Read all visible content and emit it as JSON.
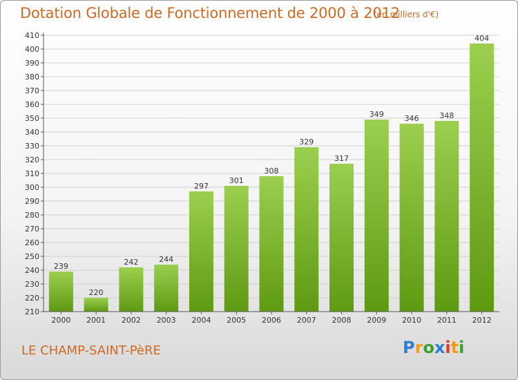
{
  "title": "Dotation Globale de Fonctionnement de 2000 à 2012",
  "unit_note": "(en milliers d'€)",
  "commune": "LE CHAMP-SAINT-PèRE",
  "logo": {
    "letters": [
      "P",
      "r",
      "o",
      "x",
      "i",
      "t",
      "i"
    ],
    "colors": [
      "#2a7fd4",
      "#f39c12",
      "#3aa02f",
      "#2a7fd4",
      "#e2352b",
      "#f39c12",
      "#3aa02f"
    ]
  },
  "colors": {
    "bar_top": "#9ccf4f",
    "bar_bottom": "#5e9a12",
    "grid": "#d0d0d0",
    "axis": "#555555",
    "text": "#333333",
    "accent": "#d06a22"
  },
  "chart_data": {
    "type": "bar",
    "categories": [
      "2000",
      "2001",
      "2002",
      "2003",
      "2004",
      "2005",
      "2006",
      "2007",
      "2008",
      "2009",
      "2010",
      "2011",
      "2012"
    ],
    "values": [
      239,
      220,
      242,
      244,
      297,
      301,
      308,
      329,
      317,
      349,
      346,
      348,
      404
    ],
    "ylim": [
      210,
      410
    ],
    "ytick_step": 10,
    "yticks": [
      "210",
      "220",
      "230",
      "240",
      "250",
      "260",
      "270",
      "280",
      "290",
      "300",
      "310",
      "320",
      "330",
      "340",
      "350",
      "360",
      "370",
      "380",
      "390",
      "400",
      "410"
    ],
    "grid": true,
    "data_labels": true
  }
}
